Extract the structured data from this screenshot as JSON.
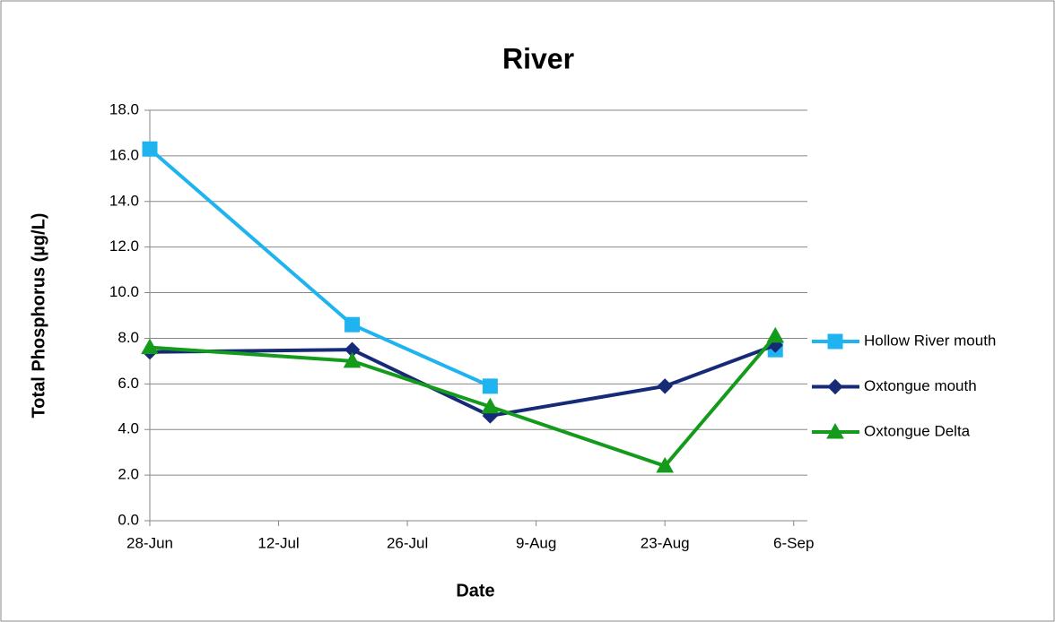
{
  "chart_data": {
    "type": "line",
    "title": "River",
    "x_label": "Date",
    "y_label": "Total Phosphorus (µg/L)",
    "x": [
      "28-Jun",
      "20-Jul",
      "4-Aug",
      "23-Aug",
      "4-Sep"
    ],
    "xlim": [
      "28-Jun",
      "7-Sep"
    ],
    "xticks": [
      "28-Jun",
      "12-Jul",
      "26-Jul",
      "9-Aug",
      "23-Aug",
      "6-Sep"
    ],
    "ylim": [
      0,
      18
    ],
    "yticks": [
      {
        "value": 0,
        "label": "0.0"
      },
      {
        "value": 2,
        "label": "2.0"
      },
      {
        "value": 4,
        "label": "4.0"
      },
      {
        "value": 6,
        "label": "6.0"
      },
      {
        "value": 8,
        "label": "8.0"
      },
      {
        "value": 10,
        "label": "10.0"
      },
      {
        "value": 12,
        "label": "12.0"
      },
      {
        "value": 14,
        "label": "14.0"
      },
      {
        "value": 16,
        "label": "16.0"
      },
      {
        "value": 18,
        "label": "18.0"
      }
    ],
    "grid": true,
    "legend": "right",
    "series": [
      {
        "name": "Hollow River mouth",
        "color": "#1fb4ef",
        "marker": "square",
        "values": [
          16.3,
          8.6,
          5.9,
          null,
          7.5
        ]
      },
      {
        "name": "Oxtongue mouth",
        "color": "#172a78",
        "marker": "diamond",
        "values": [
          7.4,
          7.5,
          4.6,
          5.9,
          7.7
        ]
      },
      {
        "name": "Oxtongue Delta",
        "color": "#149b1c",
        "marker": "triangle",
        "values": [
          7.6,
          7.0,
          5.0,
          2.4,
          8.1
        ]
      }
    ]
  }
}
